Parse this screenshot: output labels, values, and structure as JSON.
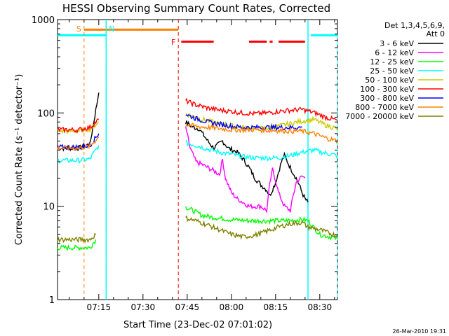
{
  "chart_data": {
    "type": "line",
    "title": "HESSI Observing Summary Count Rates, Corrected",
    "xlabel": "Start Time (23-Dec-02 07:01:02)",
    "ylabel": "Corrected Count Rate (s⁻¹ detector⁻¹)",
    "xticks": [
      "07:15",
      "07:30",
      "07:45",
      "08:00",
      "08:15",
      "08:30"
    ],
    "yticks": [
      "1",
      "10",
      "100",
      "1000"
    ],
    "y_scale": "log",
    "ylim": [
      1,
      1000
    ],
    "xlim_minutes_after_07_00": [
      1,
      96
    ],
    "grid": false,
    "legend_header": [
      "Det 1,3,4,5,6,9,",
      "Att 0"
    ],
    "legend_position": "right",
    "series": [
      {
        "name": "3 - 6 keV",
        "color": "#000000",
        "pre": [
          [
            1,
            42
          ],
          [
            8,
            42
          ],
          [
            12,
            46
          ],
          [
            15,
            165
          ]
        ],
        "post": [
          [
            44.5,
            80
          ],
          [
            47,
            70
          ],
          [
            49,
            68
          ],
          [
            52,
            50
          ],
          [
            54,
            42
          ],
          [
            57,
            50
          ],
          [
            59,
            42
          ],
          [
            62,
            38
          ],
          [
            64,
            32
          ],
          [
            66,
            26
          ],
          [
            68,
            20
          ],
          [
            70,
            17
          ],
          [
            72,
            15
          ],
          [
            73,
            13
          ],
          [
            75,
            18
          ],
          [
            77,
            30
          ],
          [
            78,
            35
          ],
          [
            80,
            26
          ],
          [
            82,
            20
          ],
          [
            83,
            17
          ],
          [
            84,
            14
          ],
          [
            85,
            12
          ],
          [
            86,
            11
          ]
        ]
      },
      {
        "name": "6 - 12 keV",
        "color": "#ff00ff",
        "pre": [],
        "post": [
          [
            44.5,
            70
          ],
          [
            46,
            42
          ],
          [
            48,
            30
          ],
          [
            50,
            28
          ],
          [
            52,
            26
          ],
          [
            54,
            24
          ],
          [
            56,
            22
          ],
          [
            57,
            32
          ],
          [
            58,
            20
          ],
          [
            60,
            14
          ],
          [
            62,
            12
          ],
          [
            64,
            11
          ],
          [
            66,
            10
          ],
          [
            68,
            10
          ],
          [
            70,
            10
          ],
          [
            72,
            9
          ],
          [
            73,
            17
          ],
          [
            74,
            25
          ],
          [
            75,
            19
          ],
          [
            76,
            14
          ],
          [
            78,
            10
          ],
          [
            80,
            9
          ],
          [
            81,
            13
          ],
          [
            82,
            18
          ],
          [
            84,
            21
          ],
          [
            85,
            20
          ]
        ]
      },
      {
        "name": "12 - 25 keV",
        "color": "#00ff00",
        "pre": [
          [
            1,
            3.6
          ],
          [
            8,
            3.6
          ],
          [
            12,
            3.6
          ],
          [
            14,
            4.4
          ]
        ],
        "post": [
          [
            44.5,
            9.8
          ],
          [
            47,
            9.0
          ],
          [
            50,
            8.0
          ],
          [
            54,
            7.6
          ],
          [
            60,
            7.2
          ],
          [
            66,
            7.0
          ],
          [
            72,
            7.0
          ],
          [
            78,
            7.0
          ],
          [
            84,
            7.2
          ],
          [
            86,
            7.0
          ],
          [
            90,
            5.0
          ],
          [
            96,
            4.5
          ]
        ]
      },
      {
        "name": "25 - 50 keV",
        "color": "#00ffff",
        "pre": [
          [
            1,
            31
          ],
          [
            8,
            31
          ],
          [
            12,
            32
          ],
          [
            15,
            45
          ]
        ],
        "post": [
          [
            44.5,
            48
          ],
          [
            48,
            45
          ],
          [
            52,
            41
          ],
          [
            56,
            38
          ],
          [
            60,
            36
          ],
          [
            64,
            34
          ],
          [
            68,
            33
          ],
          [
            72,
            33
          ],
          [
            76,
            33
          ],
          [
            80,
            35
          ],
          [
            84,
            38
          ],
          [
            88,
            40
          ],
          [
            92,
            37
          ],
          [
            96,
            35
          ]
        ]
      },
      {
        "name": "50 - 100 keV",
        "color": "#cccc00",
        "pre": [
          [
            1,
            64
          ],
          [
            8,
            64
          ],
          [
            12,
            67
          ],
          [
            15,
            80
          ]
        ],
        "post": [
          [
            44.5,
            98
          ],
          [
            48,
            90
          ],
          [
            52,
            82
          ],
          [
            56,
            77
          ],
          [
            60,
            73
          ],
          [
            64,
            70
          ],
          [
            68,
            68
          ],
          [
            72,
            69
          ],
          [
            76,
            72
          ],
          [
            80,
            77
          ],
          [
            84,
            82
          ],
          [
            88,
            85
          ],
          [
            92,
            74
          ],
          [
            96,
            68
          ]
        ]
      },
      {
        "name": "100 - 300 keV",
        "color": "#ff0000",
        "pre": [
          [
            1,
            66
          ],
          [
            8,
            66
          ],
          [
            12,
            70
          ],
          [
            15,
            85
          ]
        ],
        "post": [
          [
            44.5,
            135
          ],
          [
            48,
            122
          ],
          [
            52,
            113
          ],
          [
            56,
            107
          ],
          [
            60,
            104
          ],
          [
            64,
            100
          ],
          [
            68,
            98
          ],
          [
            72,
            100
          ],
          [
            76,
            104
          ],
          [
            80,
            107
          ],
          [
            84,
            109
          ],
          [
            88,
            101
          ],
          [
            92,
            90
          ],
          [
            96,
            83
          ]
        ]
      },
      {
        "name": "300 - 800 keV",
        "color": "#0000ff",
        "pre": [
          [
            1,
            43
          ],
          [
            8,
            43
          ],
          [
            12,
            45
          ],
          [
            15,
            60
          ]
        ],
        "post": [
          [
            44.5,
            97
          ],
          [
            48,
            87
          ],
          [
            52,
            80
          ],
          [
            56,
            76
          ],
          [
            60,
            72
          ],
          [
            64,
            70
          ],
          [
            68,
            70
          ],
          [
            72,
            70
          ],
          [
            76,
            70
          ],
          [
            80,
            70
          ],
          [
            84,
            70
          ]
        ]
      },
      {
        "name": "800 - 7000 keV",
        "color": "#ff8000",
        "pre": [
          [
            1,
            42
          ],
          [
            8,
            42
          ],
          [
            12,
            44
          ],
          [
            15,
            55
          ]
        ],
        "post": [
          [
            44.5,
            75
          ],
          [
            48,
            72
          ],
          [
            52,
            70
          ],
          [
            56,
            68
          ],
          [
            60,
            66
          ],
          [
            64,
            66
          ],
          [
            68,
            66
          ],
          [
            72,
            65
          ],
          [
            76,
            65
          ],
          [
            80,
            64
          ],
          [
            84,
            64
          ],
          [
            88,
            60
          ],
          [
            92,
            54
          ],
          [
            96,
            50
          ]
        ]
      },
      {
        "name": "7000 - 20000 keV",
        "color": "#808000",
        "pre": [
          [
            1,
            4.4
          ],
          [
            8,
            4.4
          ],
          [
            12,
            4.4
          ],
          [
            14,
            5.0
          ]
        ],
        "post": [
          [
            44.5,
            7.5
          ],
          [
            48,
            7.0
          ],
          [
            52,
            6.3
          ],
          [
            56,
            5.6
          ],
          [
            60,
            5.0
          ],
          [
            64,
            4.7
          ],
          [
            68,
            4.9
          ],
          [
            72,
            5.4
          ],
          [
            76,
            6.0
          ],
          [
            80,
            6.5
          ],
          [
            84,
            6.7
          ],
          [
            86,
            6.0
          ],
          [
            90,
            5.6
          ],
          [
            96,
            4.8
          ]
        ]
      }
    ],
    "markers": [
      {
        "label": "S",
        "x": 10,
        "color": "#ff8000"
      },
      {
        "label": "N",
        "x": 17.5,
        "color": "#00ffff"
      },
      {
        "label": "F",
        "x": 42,
        "color": "#ff0000"
      }
    ],
    "overlay_bars": [
      {
        "color": "#00ffff",
        "y": 680,
        "segments": [
          [
            1,
            17.5
          ],
          [
            87,
            96
          ]
        ]
      },
      {
        "color": "#ff8000",
        "y": 780,
        "segments": [
          [
            10,
            42
          ]
        ]
      },
      {
        "color": "#ff0000",
        "y": 580,
        "segments": [
          [
            43,
            54
          ],
          [
            66,
            72
          ],
          [
            73,
            74
          ],
          [
            76,
            85
          ]
        ]
      }
    ]
  },
  "footer_timestamp": "26-Mar-2010 19:31"
}
